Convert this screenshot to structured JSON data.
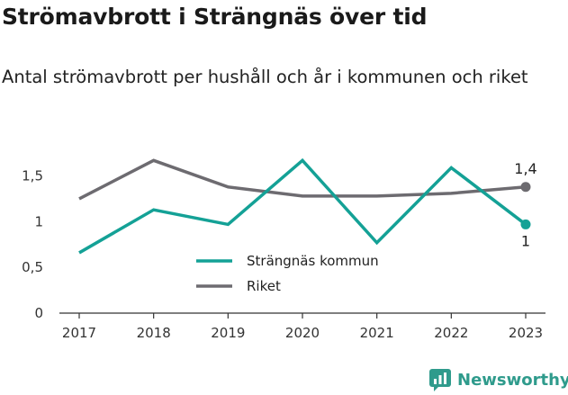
{
  "title": "Strömavbrott i Strängnäs över tid",
  "subtitle": "Antal strömavbrott per hushåll och år i kommunen och riket",
  "brand": "Newsworthy",
  "chart_data": {
    "type": "line",
    "x": [
      "2017",
      "2018",
      "2019",
      "2020",
      "2021",
      "2022",
      "2023"
    ],
    "series": [
      {
        "name": "Strängnäs kommun",
        "color": "#14a196",
        "values": [
          0.66,
          1.13,
          0.97,
          1.67,
          0.77,
          1.59,
          0.97
        ],
        "end_label": "1"
      },
      {
        "name": "Riket",
        "color": "#6d6b70",
        "values": [
          1.25,
          1.67,
          1.38,
          1.28,
          1.28,
          1.31,
          1.38
        ],
        "end_label": "1,4"
      }
    ],
    "y_ticks": [
      {
        "value": 0,
        "label": "0"
      },
      {
        "value": 0.5,
        "label": "0,5"
      },
      {
        "value": 1,
        "label": "1"
      },
      {
        "value": 1.5,
        "label": "1,5"
      }
    ],
    "ylim": [
      0,
      1.85
    ],
    "grid": false,
    "legend_position": "bottom-center"
  }
}
